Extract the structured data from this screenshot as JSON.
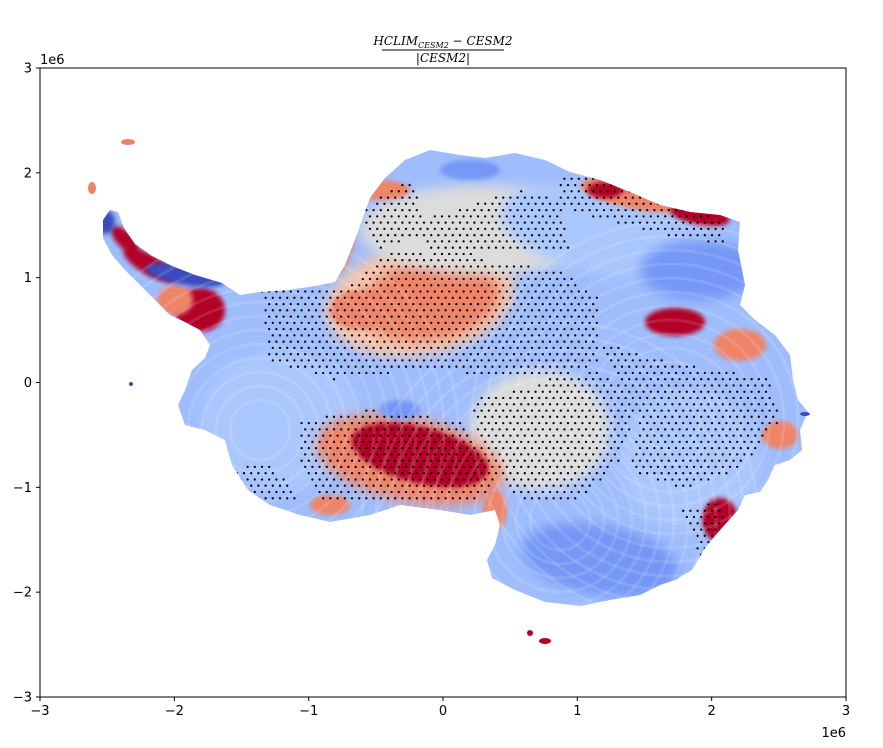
{
  "chart_data": {
    "type": "heatmap",
    "title_numerator": "HCLIM",
    "title_numerator_sub": "CESM2",
    "title_numerator_rest": " − CESM2",
    "title_denominator": "|CESM2|",
    "xlim": [
      -3,
      3
    ],
    "ylim": [
      -3,
      3
    ],
    "x_ticks": [
      -3,
      -2,
      -1,
      0,
      1,
      2,
      3
    ],
    "y_ticks": [
      -3,
      -2,
      -1,
      0,
      1,
      2,
      3
    ],
    "x_tick_labels": [
      "−3",
      "−2",
      "−1",
      "0",
      "1",
      "2",
      "3"
    ],
    "y_tick_labels": [
      "−3",
      "−2",
      "−1",
      "0",
      "1",
      "2",
      "3"
    ],
    "x_offset_label": "1e6",
    "y_offset_label": "1e6",
    "colormap": "coolwarm",
    "colors": {
      "strong_positive": "#b40426",
      "positive": "#ee8468",
      "light_positive": "#f4c5ad",
      "neutral": "#dddcdc",
      "light_negative": "#aac7fd",
      "negative": "#7597f6",
      "strong_negative": "#3b4cc0"
    },
    "stippling": "significance dots",
    "grid": false
  }
}
